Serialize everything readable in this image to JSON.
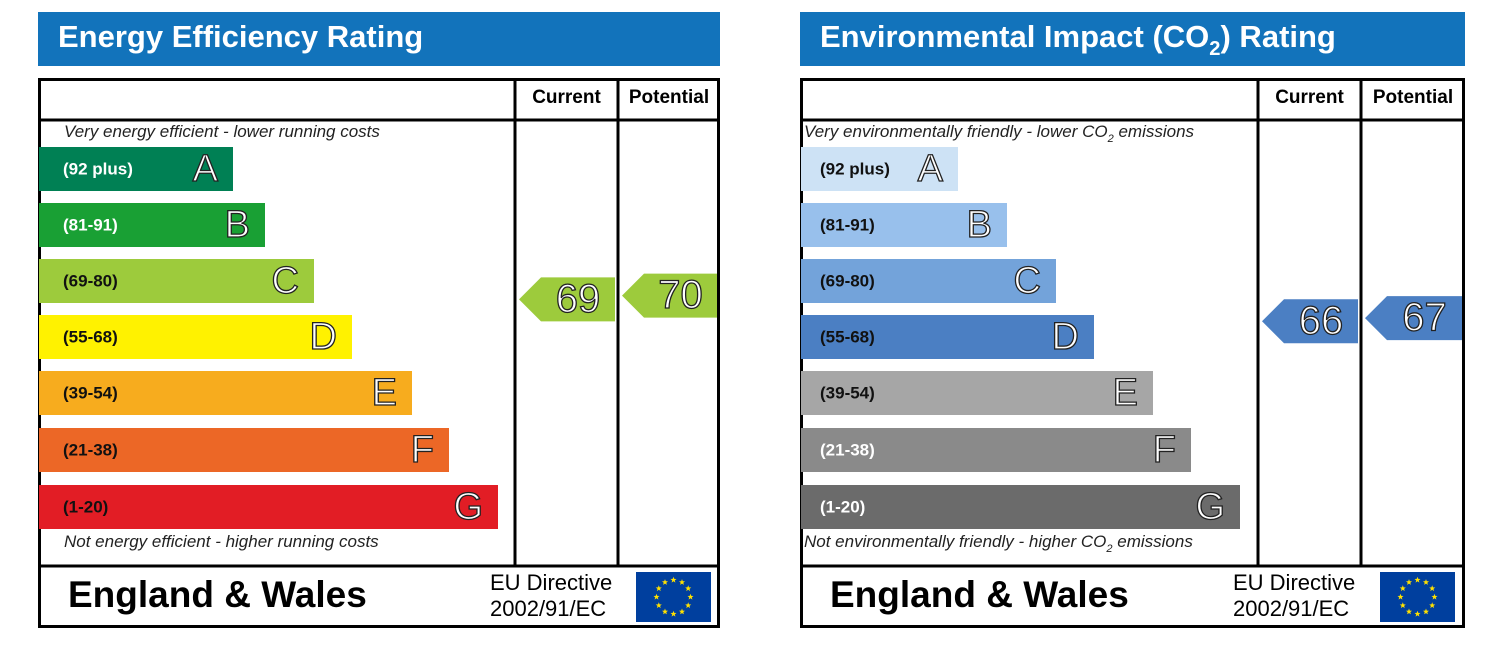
{
  "panels": [
    {
      "title": [
        "Energy Efficiency Rating"
      ],
      "current_label": "Current",
      "potential_label": "Potential",
      "top_note": [
        "Very energy efficient - lower running costs"
      ],
      "bottom_note": [
        "Not energy efficient - higher running costs"
      ],
      "bands": [
        {
          "range": "(92 plus)",
          "letter": "A",
          "color": "#008054",
          "text_color": "#ffffff"
        },
        {
          "range": "(81-91)",
          "letter": "B",
          "color": "#19a034",
          "text_color": "#ffffff"
        },
        {
          "range": "(69-80)",
          "letter": "C",
          "color": "#9dcb3c",
          "text_color": "#111111"
        },
        {
          "range": "(55-68)",
          "letter": "D",
          "color": "#fff200",
          "text_color": "#111111"
        },
        {
          "range": "(39-54)",
          "letter": "E",
          "color": "#f7ac1e",
          "text_color": "#111111"
        },
        {
          "range": "(21-38)",
          "letter": "F",
          "color": "#ec6726",
          "text_color": "#111111"
        },
        {
          "range": "(1-20)",
          "letter": "G",
          "color": "#e21d25",
          "text_color": "#111111"
        }
      ],
      "current": 69,
      "potential": 70,
      "footer": "England & Wales",
      "directive": [
        "EU Directive",
        "2002/91/EC"
      ]
    },
    {
      "title": [
        "Environmental Impact (CO",
        "2",
        ") Rating"
      ],
      "current_label": "Current",
      "potential_label": "Potential",
      "top_note": [
        "Very environmentally friendly - lower  CO",
        "2",
        " emissions"
      ],
      "bottom_note": [
        "Not environmentally friendly - higher  CO",
        "2",
        " emissions"
      ],
      "bands": [
        {
          "range": "(92 plus)",
          "letter": "A",
          "color": "#cde2f5",
          "text_color": "#111111"
        },
        {
          "range": "(81-91)",
          "letter": "B",
          "color": "#98c0ec",
          "text_color": "#111111"
        },
        {
          "range": "(69-80)",
          "letter": "C",
          "color": "#73a3da",
          "text_color": "#111111"
        },
        {
          "range": "(55-68)",
          "letter": "D",
          "color": "#4b7fc3",
          "text_color": "#111111"
        },
        {
          "range": "(39-54)",
          "letter": "E",
          "color": "#a6a6a6",
          "text_color": "#111111"
        },
        {
          "range": "(21-38)",
          "letter": "F",
          "color": "#8a8a8a",
          "text_color": "#ffffff"
        },
        {
          "range": "(1-20)",
          "letter": "G",
          "color": "#6b6b6b",
          "text_color": "#ffffff"
        }
      ],
      "current": 66,
      "potential": 67,
      "footer": "England & Wales",
      "directive": [
        "EU Directive",
        "2002/91/EC"
      ]
    }
  ]
}
